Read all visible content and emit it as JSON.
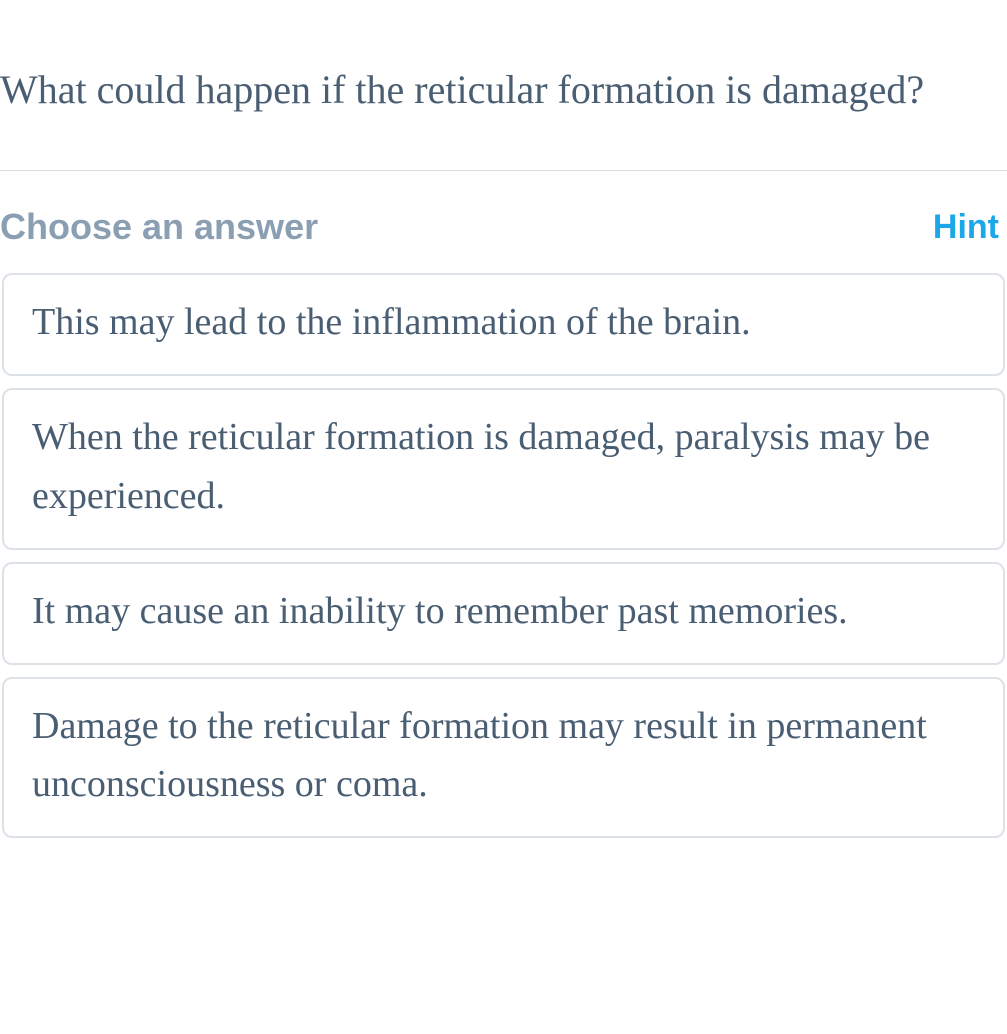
{
  "question": {
    "text": "What could happen if the reticular formation is damaged?",
    "text_color": "#4a5e73",
    "font_size": 40
  },
  "choose_header": {
    "label": "Choose an answer",
    "label_color": "#8b9fb3",
    "hint_label": "Hint",
    "hint_color": "#1ca8e8"
  },
  "options": [
    {
      "text": " This may lead to the inflammation of the brain."
    },
    {
      "text": " When the reticular formation is damaged, paralysis may be experienced."
    },
    {
      "text": " It may cause an inability to remember past memories."
    },
    {
      "text": " Damage to the reticular formation may result in permanent unconsciousness or coma."
    }
  ],
  "styles": {
    "option_border_color": "#dce2e7",
    "option_text_color": "#4a5e73",
    "option_font_size": 38,
    "divider_color": "#d8dde2",
    "background_color": "#ffffff",
    "option_border_radius": 10
  }
}
